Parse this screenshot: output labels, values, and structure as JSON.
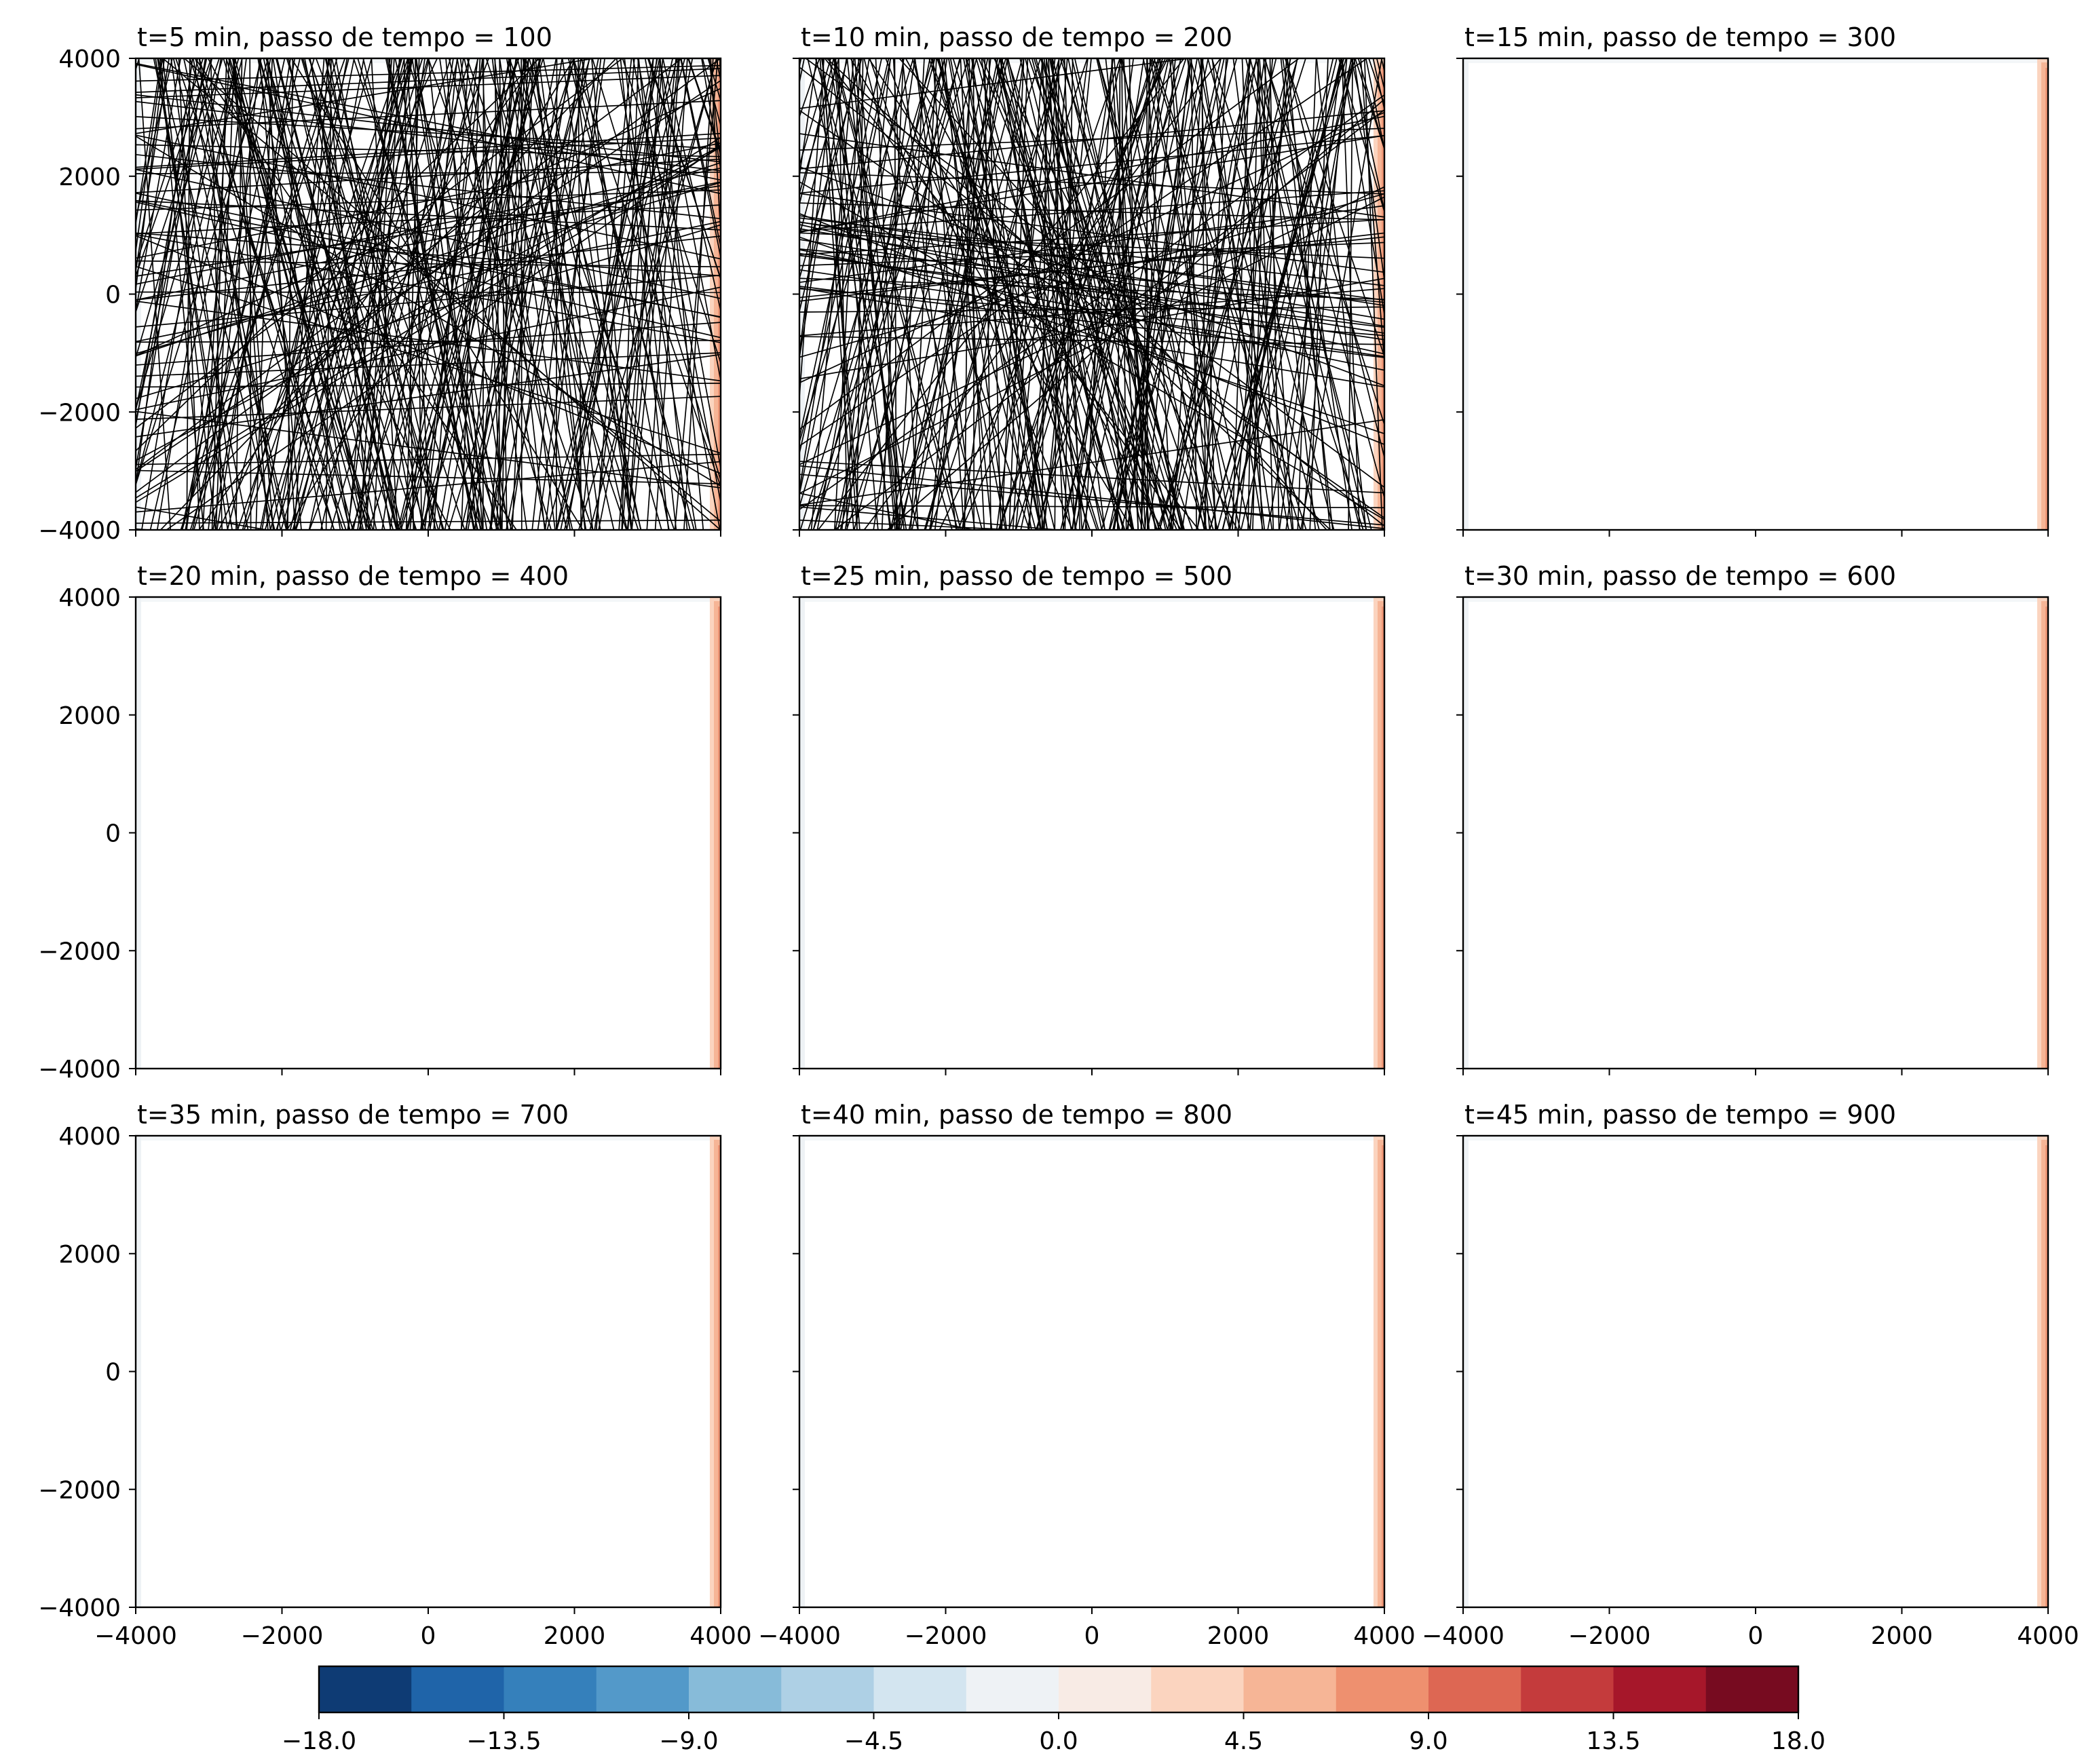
{
  "chart_data": {
    "type": "contour-grid",
    "rows": 3,
    "cols": 3,
    "grid": false,
    "xlim": [
      -4000,
      4000
    ],
    "ylim": [
      -4000,
      4000
    ],
    "x_ticks": [
      -4000,
      -2000,
      0,
      2000,
      4000
    ],
    "y_ticks": [
      -4000,
      -2000,
      0,
      2000,
      4000
    ],
    "x_tick_labels": [
      "−4000",
      "−2000",
      "0",
      "2000",
      "4000"
    ],
    "y_tick_labels": [
      "−4000",
      "−2000",
      "0",
      "2000",
      "4000"
    ],
    "panels": [
      {
        "title": "t=5 min, passo de tempo = 100",
        "t_min": 5,
        "step": 100,
        "rays": true
      },
      {
        "title": "t=10 min, passo de tempo = 200",
        "t_min": 10,
        "step": 200,
        "rays": true
      },
      {
        "title": "t=15 min, passo de tempo = 300",
        "t_min": 15,
        "step": 300,
        "rays": false
      },
      {
        "title": "t=20 min, passo de tempo = 400",
        "t_min": 20,
        "step": 400,
        "rays": false
      },
      {
        "title": "t=25 min, passo de tempo = 500",
        "t_min": 25,
        "step": 500,
        "rays": false
      },
      {
        "title": "t=30 min, passo de tempo = 600",
        "t_min": 30,
        "step": 600,
        "rays": false
      },
      {
        "title": "t=35 min, passo de tempo = 700",
        "t_min": 35,
        "step": 700,
        "rays": false
      },
      {
        "title": "t=40 min, passo de tempo = 800",
        "t_min": 40,
        "step": 800,
        "rays": false
      },
      {
        "title": "t=45 min, passo de tempo = 900",
        "t_min": 45,
        "step": 900,
        "rays": false
      }
    ],
    "colorbar": {
      "orientation": "horizontal",
      "placement": "bottom",
      "min": -18.0,
      "max": 18.0,
      "levels": 16,
      "tick_values": [
        -18.0,
        -13.5,
        -9.0,
        -4.5,
        0.0,
        4.5,
        9.0,
        13.5,
        18.0
      ],
      "tick_labels": [
        "−18.0",
        "−13.5",
        "−9.0",
        "−4.5",
        "0.0",
        "4.5",
        "9.0",
        "13.5",
        "18.0"
      ],
      "colors": [
        "#0e3b74",
        "#1f64a9",
        "#3580bb",
        "#5399c9",
        "#87bbd9",
        "#aed0e5",
        "#d3e5f0",
        "#eef2f5",
        "#f8ebe5",
        "#fbd4bf",
        "#f6b596",
        "#ee906f",
        "#dd6753",
        "#c43b3c",
        "#a6172a",
        "#770b20"
      ]
    }
  }
}
